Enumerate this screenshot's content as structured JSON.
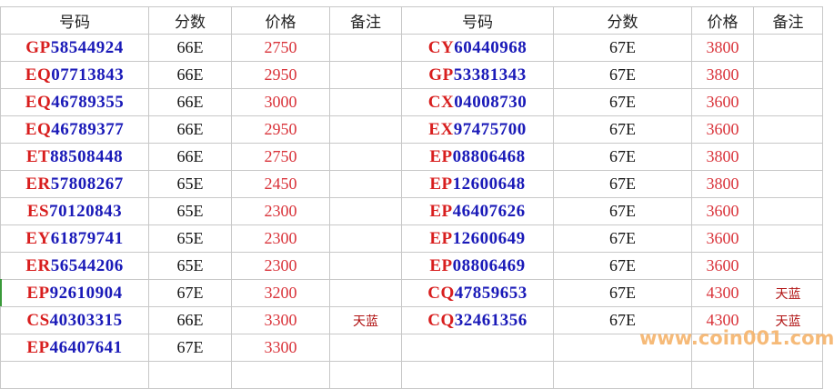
{
  "headers": {
    "code": "号码",
    "score": "分数",
    "price": "价格",
    "note": "备注"
  },
  "colors": {
    "prefix": "#d81e1e",
    "number": "#1a1ab8",
    "price": "#d9333a",
    "note": "#b01010"
  },
  "left": [
    {
      "prefix": "GP",
      "number": "58544924",
      "score": "66E",
      "price": "2750",
      "note": ""
    },
    {
      "prefix": "EQ",
      "number": "07713843",
      "score": "66E",
      "price": "2950",
      "note": ""
    },
    {
      "prefix": "EQ",
      "number": "46789355",
      "score": "66E",
      "price": "3000",
      "note": ""
    },
    {
      "prefix": "EQ",
      "number": "46789377",
      "score": "66E",
      "price": "2950",
      "note": ""
    },
    {
      "prefix": "ET",
      "number": "88508448",
      "score": "66E",
      "price": "2750",
      "note": ""
    },
    {
      "prefix": "ER",
      "number": "57808267",
      "score": "65E",
      "price": "2450",
      "note": ""
    },
    {
      "prefix": "ES",
      "number": "70120843",
      "score": "65E",
      "price": "2300",
      "note": ""
    },
    {
      "prefix": "EY",
      "number": "61879741",
      "score": "65E",
      "price": "2300",
      "note": ""
    },
    {
      "prefix": "ER",
      "number": "56544206",
      "score": "65E",
      "price": "2300",
      "note": ""
    },
    {
      "prefix": "EP",
      "number": "92610904",
      "score": "67E",
      "price": "3200",
      "note": ""
    },
    {
      "prefix": "CS",
      "number": "40303315",
      "score": "66E",
      "price": "3300",
      "note": "天蓝"
    },
    {
      "prefix": "EP",
      "number": "46407641",
      "score": "67E",
      "price": "3300",
      "note": ""
    }
  ],
  "right": [
    {
      "prefix": "CY",
      "number": "60440968",
      "score": "67E",
      "price": "3800",
      "note": ""
    },
    {
      "prefix": "GP",
      "number": "53381343",
      "score": "67E",
      "price": "3800",
      "note": ""
    },
    {
      "prefix": "CX",
      "number": "04008730",
      "score": "67E",
      "price": "3600",
      "note": ""
    },
    {
      "prefix": "EX",
      "number": "97475700",
      "score": "67E",
      "price": "3600",
      "note": ""
    },
    {
      "prefix": "EP",
      "number": "08806468",
      "score": "67E",
      "price": "3800",
      "note": ""
    },
    {
      "prefix": "EP",
      "number": "12600648",
      "score": "67E",
      "price": "3800",
      "note": ""
    },
    {
      "prefix": "EP",
      "number": "46407626",
      "score": "67E",
      "price": "3600",
      "note": ""
    },
    {
      "prefix": "EP",
      "number": "12600649",
      "score": "67E",
      "price": "3600",
      "note": ""
    },
    {
      "prefix": "EP",
      "number": "08806469",
      "score": "67E",
      "price": "3600",
      "note": ""
    },
    {
      "prefix": "CQ",
      "number": "47859653",
      "score": "67E",
      "price": "4300",
      "note": "天蓝"
    },
    {
      "prefix": "CQ",
      "number": "32461356",
      "score": "67E",
      "price": "4300",
      "note": "天蓝"
    }
  ],
  "watermark": "www.coin001.com"
}
